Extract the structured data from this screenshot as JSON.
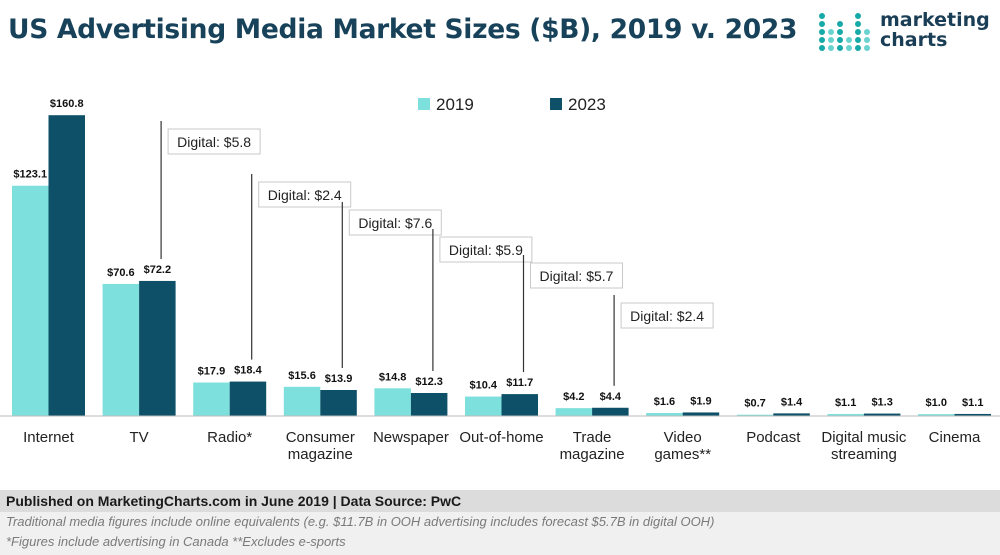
{
  "title": "US Advertising Media Market Sizes ($B), 2019 v. 2023",
  "logo": {
    "line1": "marketing",
    "line2": "charts"
  },
  "colors": {
    "y2019": "#7de0dd",
    "y2023": "#0d5068",
    "title": "#17425a"
  },
  "footer": {
    "published": "Published on MarketingCharts.com in June 2019 | Data Source: PwC",
    "note1": "Traditional media figures include online equivalents (e.g. $11.7B in OOH advertising includes forecast $5.7B in digital OOH)",
    "note2": "*Figures include advertising in Canada **Excludes e-sports"
  },
  "chart_data": {
    "type": "bar",
    "title": "US Advertising Media Market Sizes ($B), 2019 v. 2023",
    "categories": [
      "Internet",
      "TV",
      "Radio*",
      "Consumer magazine",
      "Newspaper",
      "Out-of-home",
      "Trade magazine",
      "Video games**",
      "Podcast",
      "Digital music streaming",
      "Cinema"
    ],
    "category_lines": [
      [
        "Internet"
      ],
      [
        "TV"
      ],
      [
        "Radio*"
      ],
      [
        "Consumer",
        "magazine"
      ],
      [
        "Newspaper"
      ],
      [
        "Out-of-home"
      ],
      [
        "Trade",
        "magazine"
      ],
      [
        "Video",
        "games**"
      ],
      [
        "Podcast"
      ],
      [
        "Digital music",
        "streaming"
      ],
      [
        "Cinema"
      ]
    ],
    "series": [
      {
        "name": "2019",
        "values": [
          123.1,
          70.6,
          17.9,
          15.6,
          14.8,
          10.4,
          4.2,
          1.6,
          0.7,
          1.1,
          1.0
        ],
        "labels": [
          "$123.1",
          "$70.6",
          "$17.9",
          "$15.6",
          "$14.8",
          "$10.4",
          "$4.2",
          "$1.6",
          "$0.7",
          "$1.1",
          "$1.0"
        ]
      },
      {
        "name": "2023",
        "values": [
          160.8,
          72.2,
          18.4,
          13.9,
          12.3,
          11.7,
          4.4,
          1.9,
          1.4,
          1.3,
          1.1
        ],
        "labels": [
          "$160.8",
          "$72.2",
          "$18.4",
          "$13.9",
          "$12.3",
          "$11.7",
          "$4.4",
          "$1.9",
          "$1.4",
          "$1.3",
          "$1.1"
        ]
      }
    ],
    "annotations": [
      {
        "category": "TV",
        "text": "Digital: $5.8"
      },
      {
        "category": "Radio*",
        "text": "Digital: $2.4"
      },
      {
        "category": "Consumer magazine",
        "text": "Digital: $7.6"
      },
      {
        "category": "Newspaper",
        "text": "Digital: $5.9"
      },
      {
        "category": "Out-of-home",
        "text": "Digital: $5.7"
      },
      {
        "category": "Trade magazine",
        "text": "Digital: $2.4"
      }
    ],
    "ylim": [
      0,
      170
    ],
    "legend_position": "top",
    "grid": false
  }
}
